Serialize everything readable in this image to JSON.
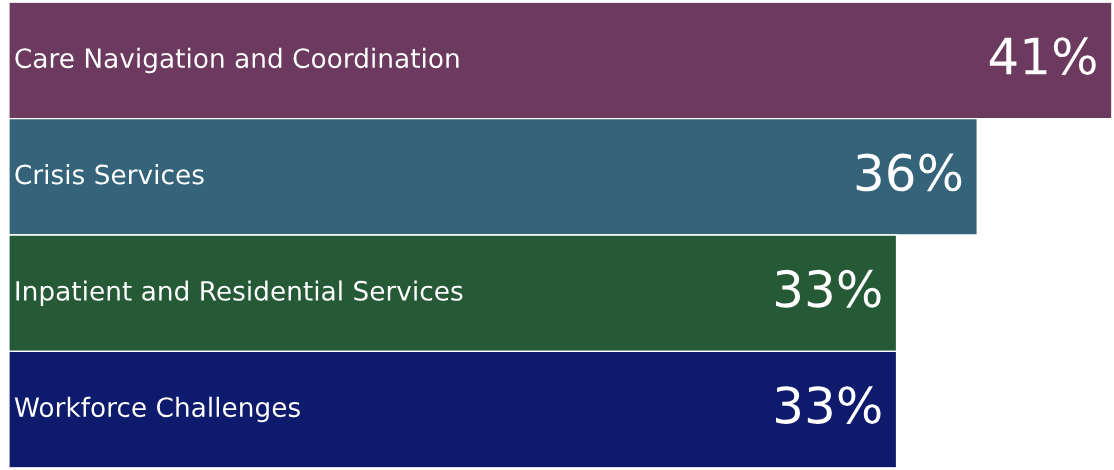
{
  "chart_data": {
    "type": "bar",
    "orientation": "horizontal",
    "categories": [
      "Care Navigation and Coordination",
      "Crisis Services",
      "Inpatient and Residential Services",
      "Workforce Challenges"
    ],
    "values": [
      41,
      36,
      33,
      33
    ],
    "colors": [
      "#6b3a5e",
      "#35647a",
      "#265a37",
      "#0e1a6b"
    ],
    "value_labels": [
      "41%",
      "36%",
      "33%",
      "33%"
    ],
    "legend": false
  }
}
